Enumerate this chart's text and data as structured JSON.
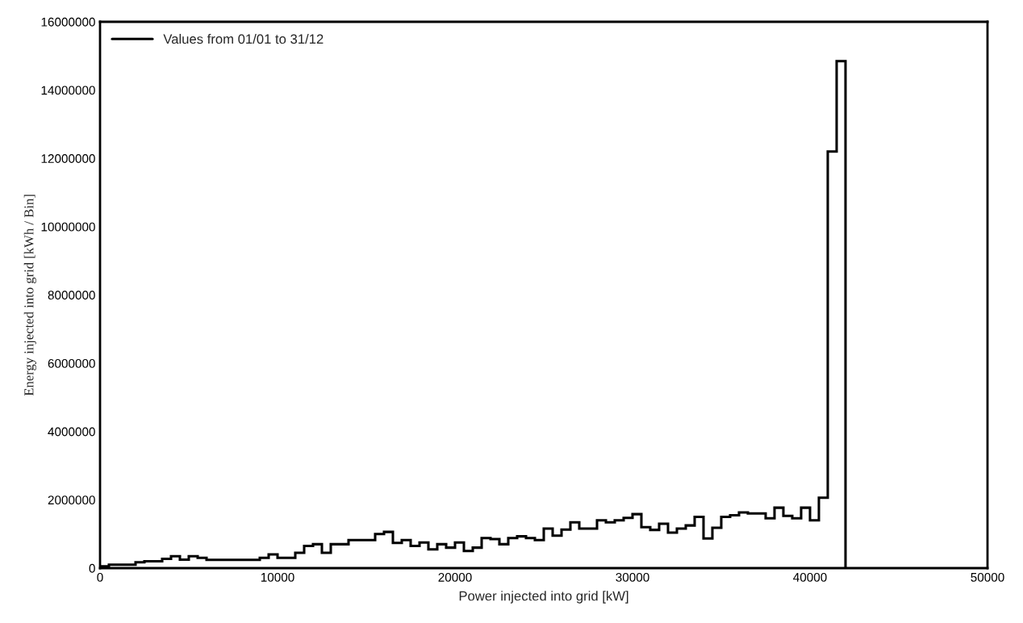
{
  "chart_data": {
    "type": "histogram",
    "xlabel": "Power injected into grid [kW]",
    "ylabel": "Energy injected into grid [kWh / Bin]",
    "bins": [
      0,
      500,
      2000,
      2500,
      3500,
      4000,
      4500,
      5000,
      5500,
      6000,
      9000,
      9500,
      10000,
      11000,
      11500,
      12000,
      12500,
      13000,
      14000,
      15500,
      16000,
      16500,
      17000,
      17500,
      18000,
      18500,
      19000,
      19500,
      20000,
      20500,
      21000,
      21500,
      22000,
      22500,
      23000,
      23500,
      24000,
      24500,
      25000,
      25500,
      26000,
      26500,
      27000,
      28000,
      28500,
      29000,
      29500,
      30000,
      30500,
      31000,
      31500,
      32000,
      32500,
      33000,
      33500,
      34000,
      34500,
      35000,
      35500,
      36000,
      36500,
      37500,
      38000,
      38500,
      39000,
      39500,
      40000,
      40500,
      41000,
      41500,
      42000
    ],
    "series": [
      {
        "name": "Values from 01/01 to 31/12",
        "color": "#000000",
        "values": [
          50000,
          100000,
          170000,
          200000,
          270000,
          350000,
          250000,
          350000,
          300000,
          240000,
          300000,
          400000,
          300000,
          450000,
          650000,
          700000,
          450000,
          700000,
          820000,
          1000000,
          1060000,
          740000,
          820000,
          650000,
          750000,
          550000,
          700000,
          600000,
          750000,
          500000,
          600000,
          880000,
          850000,
          700000,
          880000,
          930000,
          880000,
          820000,
          1160000,
          950000,
          1130000,
          1340000,
          1160000,
          1400000,
          1340000,
          1400000,
          1470000,
          1580000,
          1200000,
          1120000,
          1300000,
          1040000,
          1160000,
          1250000,
          1500000,
          870000,
          1180000,
          1500000,
          1550000,
          1630000,
          1600000,
          1460000,
          1770000,
          1530000,
          1460000,
          1770000,
          1400000,
          2060000,
          12200000,
          14850000
        ]
      }
    ],
    "xlim": [
      0,
      50000
    ],
    "xticks": [
      0,
      10000,
      20000,
      30000,
      40000,
      50000
    ],
    "ylim": [
      0,
      16000000
    ],
    "yticks": [
      0,
      2000000,
      4000000,
      6000000,
      8000000,
      10000000,
      12000000,
      14000000,
      16000000
    ],
    "legend": "top left",
    "grid": false
  }
}
